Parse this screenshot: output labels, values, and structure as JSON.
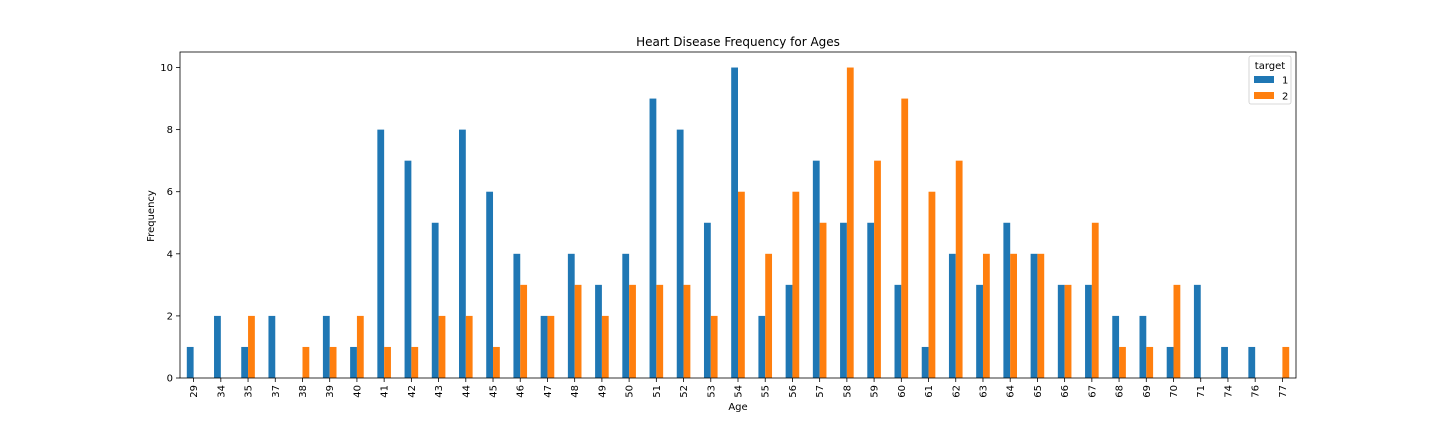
{
  "chart_data": {
    "type": "bar",
    "title": "Heart Disease Frequency for Ages",
    "xlabel": "Age",
    "ylabel": "Frequency",
    "ylim": [
      0,
      10.5
    ],
    "yticks": [
      0,
      2,
      4,
      6,
      8,
      10
    ],
    "grid": false,
    "legend": {
      "title": "target",
      "placement": "top-right"
    },
    "categories": [
      "29",
      "34",
      "35",
      "37",
      "38",
      "39",
      "40",
      "41",
      "42",
      "43",
      "44",
      "45",
      "46",
      "47",
      "48",
      "49",
      "50",
      "51",
      "52",
      "53",
      "54",
      "55",
      "56",
      "57",
      "58",
      "59",
      "60",
      "61",
      "62",
      "63",
      "64",
      "65",
      "66",
      "67",
      "68",
      "69",
      "70",
      "71",
      "74",
      "76",
      "77"
    ],
    "series": [
      {
        "name": "1",
        "color": "#1f77b4",
        "values": [
          1,
          2,
          1,
          2,
          0,
          2,
          1,
          8,
          7,
          5,
          8,
          6,
          4,
          2,
          4,
          3,
          4,
          9,
          8,
          5,
          10,
          2,
          3,
          7,
          5,
          5,
          3,
          1,
          4,
          3,
          5,
          4,
          3,
          3,
          2,
          2,
          1,
          3,
          1,
          1,
          0
        ]
      },
      {
        "name": "2",
        "color": "#ff7f0e",
        "values": [
          0,
          0,
          2,
          0,
          1,
          1,
          2,
          1,
          1,
          2,
          2,
          1,
          3,
          2,
          3,
          2,
          3,
          3,
          3,
          2,
          6,
          4,
          6,
          5,
          10,
          7,
          9,
          6,
          7,
          4,
          4,
          4,
          3,
          5,
          1,
          1,
          3,
          0,
          0,
          0,
          1
        ]
      }
    ]
  }
}
